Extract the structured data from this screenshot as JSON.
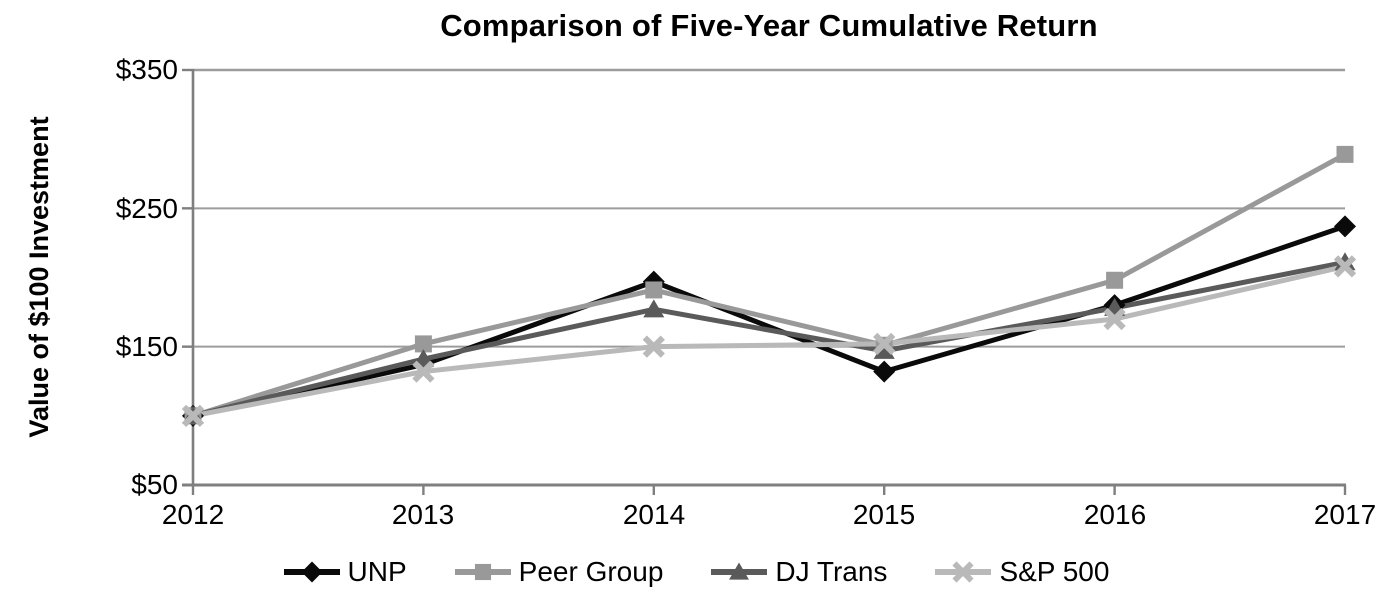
{
  "title": "Comparison of Five-Year Cumulative Return",
  "y_axis_title": "Value of $100 Investment",
  "colors": {
    "axis": "#7f7f7f",
    "grid": "#9c9c9c",
    "text": "#000000"
  },
  "chart_data": {
    "type": "line",
    "title": "Comparison of Five-Year Cumulative Return",
    "xlabel": "",
    "ylabel": "Value of $100 Investment",
    "x": [
      2012,
      2013,
      2014,
      2015,
      2016,
      2017
    ],
    "x_tick_labels": [
      "2012",
      "2013",
      "2014",
      "2015",
      "2016",
      "2017"
    ],
    "y_ticks": [
      350,
      250,
      150,
      50
    ],
    "y_tick_labels": [
      "$350",
      "$250",
      "$150",
      "$50"
    ],
    "ylim": [
      50,
      350
    ],
    "grid": "horizontal",
    "legend_position": "bottom",
    "series": [
      {
        "name": "UNP",
        "marker": "diamond",
        "color": "#0a0a0a",
        "values": [
          100,
          137,
          197,
          132,
          180,
          237
        ]
      },
      {
        "name": "Peer Group",
        "marker": "square",
        "color": "#999999",
        "values": [
          100,
          152,
          191,
          151,
          198,
          289
        ]
      },
      {
        "name": "DJ Trans",
        "marker": "triangle",
        "color": "#5a5a5a",
        "values": [
          100,
          141,
          177,
          147,
          178,
          211
        ]
      },
      {
        "name": "S&P 500",
        "marker": "x",
        "color": "#b9b9b9",
        "values": [
          100,
          132,
          150,
          152,
          170,
          208
        ]
      }
    ]
  }
}
